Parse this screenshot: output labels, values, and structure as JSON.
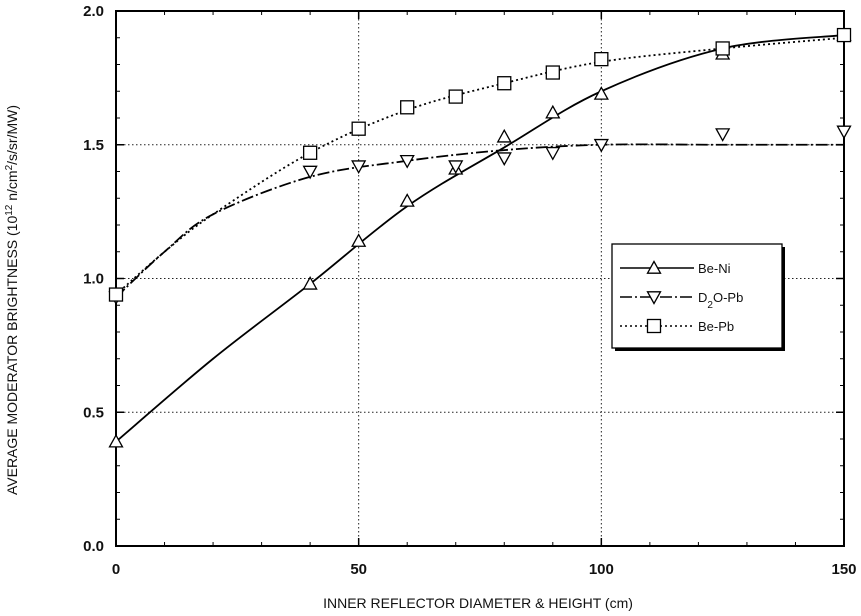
{
  "chart_data": {
    "type": "line",
    "xlabel": "INNER REFLECTOR DIAMETER & HEIGHT (cm)",
    "ylabel": "AVERAGE MODERATOR BRIGHTNESS (10^12 n/cm^2/s/sr/MW)",
    "xlim": [
      0,
      150
    ],
    "ylim": [
      0.0,
      2.0
    ],
    "x_ticks": [
      "0",
      "50",
      "100",
      "150"
    ],
    "y_ticks": [
      "0.0",
      "0.5",
      "1.0",
      "1.5",
      "2.0"
    ],
    "grid": "dotted at major ticks",
    "legend_position": "center-right",
    "series": [
      {
        "name": "Be-Ni",
        "marker": "triangle-up",
        "line_style": "solid",
        "points": [
          [
            0,
            0.39
          ],
          [
            40,
            0.98
          ],
          [
            50,
            1.14
          ],
          [
            60,
            1.29
          ],
          [
            70,
            1.41
          ],
          [
            80,
            1.53
          ],
          [
            90,
            1.62
          ],
          [
            100,
            1.69
          ],
          [
            125,
            1.84
          ],
          [
            150,
            1.91
          ]
        ],
        "curve": [
          [
            0,
            0.39
          ],
          [
            20,
            0.7
          ],
          [
            40,
            0.98
          ],
          [
            60,
            1.27
          ],
          [
            80,
            1.49
          ],
          [
            100,
            1.7
          ],
          [
            125,
            1.86
          ],
          [
            150,
            1.91
          ]
        ]
      },
      {
        "name": "D2O-Pb",
        "label_parts": [
          "D",
          "2",
          "O-Pb"
        ],
        "marker": "triangle-down",
        "line_style": "dash-dot",
        "points": [
          [
            0,
            0.93
          ],
          [
            40,
            1.4
          ],
          [
            50,
            1.42
          ],
          [
            60,
            1.44
          ],
          [
            70,
            1.42
          ],
          [
            80,
            1.45
          ],
          [
            90,
            1.47
          ],
          [
            100,
            1.5
          ],
          [
            125,
            1.54
          ],
          [
            150,
            1.55
          ]
        ],
        "curve": [
          [
            0,
            0.93
          ],
          [
            10,
            1.1
          ],
          [
            20,
            1.24
          ],
          [
            40,
            1.38
          ],
          [
            60,
            1.44
          ],
          [
            80,
            1.48
          ],
          [
            100,
            1.5
          ],
          [
            125,
            1.5
          ],
          [
            150,
            1.5
          ]
        ]
      },
      {
        "name": "Be-Pb",
        "marker": "square",
        "line_style": "dotted",
        "points": [
          [
            0,
            0.94
          ],
          [
            40,
            1.47
          ],
          [
            50,
            1.56
          ],
          [
            60,
            1.64
          ],
          [
            70,
            1.68
          ],
          [
            80,
            1.73
          ],
          [
            90,
            1.77
          ],
          [
            100,
            1.82
          ],
          [
            125,
            1.86
          ],
          [
            150,
            1.91
          ]
        ],
        "curve": [
          [
            0,
            0.94
          ],
          [
            10,
            1.1
          ],
          [
            20,
            1.24
          ],
          [
            40,
            1.47
          ],
          [
            60,
            1.63
          ],
          [
            80,
            1.73
          ],
          [
            100,
            1.81
          ],
          [
            125,
            1.86
          ],
          [
            150,
            1.9
          ]
        ]
      }
    ]
  }
}
